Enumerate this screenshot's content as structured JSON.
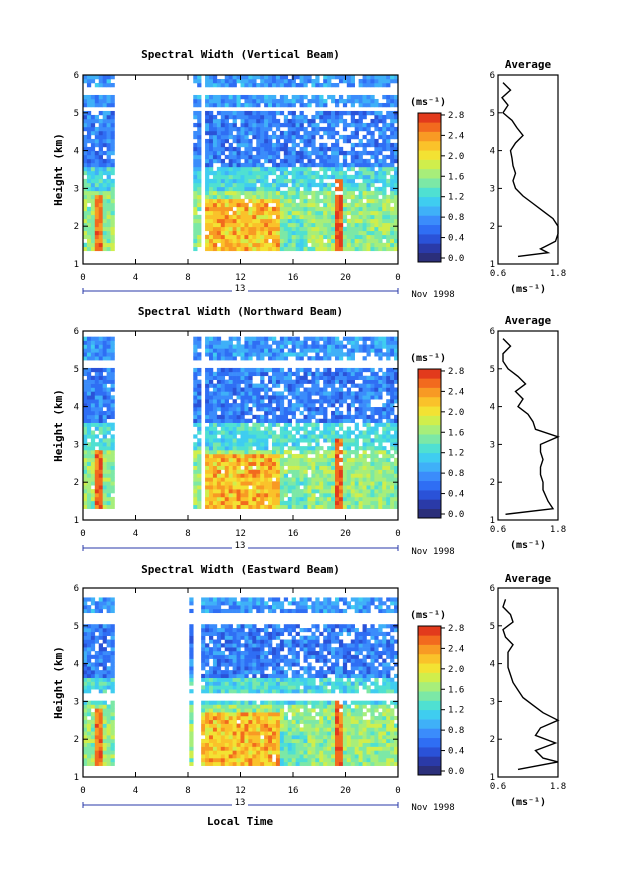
{
  "figure": {
    "xlabel": "Local Time",
    "day_label": "13",
    "month_label": "Nov 1998",
    "colorbar_unit": "(ms⁻¹)",
    "average_title": "Average",
    "average_unit": "(ms⁻¹)"
  },
  "chart_data": [
    {
      "type": "heatmap",
      "title": "Spectral Width (Vertical Beam)",
      "ylabel": "Height (km)",
      "x_ticks": [
        "0",
        "4",
        "8",
        "12",
        "16",
        "20",
        "0"
      ],
      "y_ticks": [
        "1",
        "2",
        "3",
        "4",
        "5",
        "6"
      ],
      "xlim": [
        0,
        24
      ],
      "ylim": [
        1,
        6
      ],
      "data_range_km": [
        1.35,
        6.0
      ],
      "gaps_hours": [
        [
          2.5,
          8.5
        ],
        [
          9.0,
          9.35
        ]
      ],
      "gaps_km": [
        [
          5.05,
          5.2
        ],
        [
          5.5,
          5.7
        ]
      ],
      "colorbar": {
        "min": 0.0,
        "max": 2.8,
        "ticks": [
          "2.8",
          "2.4",
          "2.0",
          "1.6",
          "1.2",
          "0.8",
          "0.4",
          "0.0"
        ]
      },
      "average": {
        "title": "Average",
        "x_ticks": [
          "0.6",
          "1.8"
        ],
        "xlim": [
          0.6,
          1.8
        ],
        "y_ticks": [
          "1",
          "2",
          "3",
          "4",
          "5",
          "6"
        ],
        "height_km": [
          1.2,
          1.3,
          1.4,
          1.5,
          1.6,
          1.8,
          2.0,
          2.2,
          2.4,
          2.6,
          2.8,
          3.0,
          3.2,
          3.4,
          3.6,
          3.8,
          4.0,
          4.2,
          4.4,
          4.6,
          4.8,
          5.0,
          5.2,
          5.4,
          5.6,
          5.8
        ],
        "values": [
          1.0,
          1.6,
          1.45,
          1.6,
          1.75,
          1.8,
          1.8,
          1.7,
          1.5,
          1.3,
          1.1,
          0.95,
          0.9,
          0.95,
          0.9,
          0.88,
          0.85,
          0.95,
          1.1,
          0.98,
          0.88,
          0.7,
          0.8,
          0.68,
          0.85,
          0.7
        ]
      }
    },
    {
      "type": "heatmap",
      "title": "Spectral Width (Northward Beam)",
      "ylabel": "Height (km)",
      "x_ticks": [
        "0",
        "4",
        "8",
        "12",
        "16",
        "20",
        "0"
      ],
      "y_ticks": [
        "1",
        "2",
        "3",
        "4",
        "5",
        "6"
      ],
      "xlim": [
        0,
        24
      ],
      "ylim": [
        1,
        6
      ],
      "data_range_km": [
        1.3,
        5.85
      ],
      "gaps_hours": [
        [
          2.5,
          8.5
        ],
        [
          9.0,
          9.35
        ]
      ],
      "gaps_km": [
        [
          5.05,
          5.25
        ]
      ],
      "colorbar": {
        "min": 0.0,
        "max": 2.8,
        "ticks": [
          "2.8",
          "2.4",
          "2.0",
          "1.6",
          "1.2",
          "0.8",
          "0.4",
          "0.0"
        ]
      },
      "average": {
        "title": "Average",
        "x_ticks": [
          "0.6",
          "1.8"
        ],
        "xlim": [
          0.6,
          1.8
        ],
        "y_ticks": [
          "1",
          "2",
          "3",
          "4",
          "5",
          "6"
        ],
        "height_km": [
          1.15,
          1.3,
          1.5,
          1.8,
          2.0,
          2.2,
          2.4,
          2.6,
          2.8,
          3.0,
          3.2,
          3.4,
          3.6,
          3.8,
          4.0,
          4.2,
          4.4,
          4.6,
          4.8,
          5.0,
          5.2,
          5.4,
          5.6,
          5.8
        ],
        "values": [
          0.75,
          1.7,
          1.6,
          1.5,
          1.5,
          1.45,
          1.45,
          1.5,
          1.45,
          1.45,
          1.8,
          1.35,
          1.3,
          1.2,
          1.0,
          1.1,
          0.95,
          1.15,
          1.0,
          0.8,
          0.7,
          0.7,
          0.85,
          0.7
        ]
      }
    },
    {
      "type": "heatmap",
      "title": "Spectral Width (Eastward Beam)",
      "ylabel": "Height (km)",
      "x_ticks": [
        "0",
        "4",
        "8",
        "12",
        "16",
        "20",
        "0"
      ],
      "y_ticks": [
        "1",
        "2",
        "3",
        "4",
        "5",
        "6"
      ],
      "xlim": [
        0,
        24
      ],
      "ylim": [
        1,
        6
      ],
      "data_range_km": [
        1.3,
        5.75
      ],
      "gaps_hours": [
        [
          2.5,
          8.0
        ],
        [
          8.5,
          8.9
        ]
      ],
      "gaps_km": [
        [
          3.0,
          3.25
        ],
        [
          5.05,
          5.3
        ]
      ],
      "colorbar": {
        "min": 0.0,
        "max": 2.8,
        "ticks": [
          "2.8",
          "2.4",
          "2.0",
          "1.6",
          "1.2",
          "0.8",
          "0.4",
          "0.0"
        ]
      },
      "average": {
        "title": "Average",
        "x_ticks": [
          "0.6",
          "1.8"
        ],
        "xlim": [
          0.6,
          1.8
        ],
        "y_ticks": [
          "1",
          "2",
          "3",
          "4",
          "5",
          "6"
        ],
        "height_km": [
          1.2,
          1.4,
          1.5,
          1.7,
          1.9,
          2.1,
          2.3,
          2.5,
          2.7,
          2.9,
          3.1,
          3.3,
          3.5,
          3.7,
          3.9,
          4.1,
          4.3,
          4.5,
          4.7,
          4.9,
          5.1,
          5.3,
          5.5,
          5.7
        ],
        "values": [
          1.0,
          1.8,
          1.5,
          1.35,
          1.75,
          1.35,
          1.45,
          1.8,
          1.5,
          1.3,
          1.1,
          1.0,
          0.9,
          0.85,
          0.8,
          0.8,
          0.8,
          0.9,
          0.75,
          0.7,
          0.9,
          0.85,
          0.7,
          0.75
        ]
      }
    }
  ]
}
